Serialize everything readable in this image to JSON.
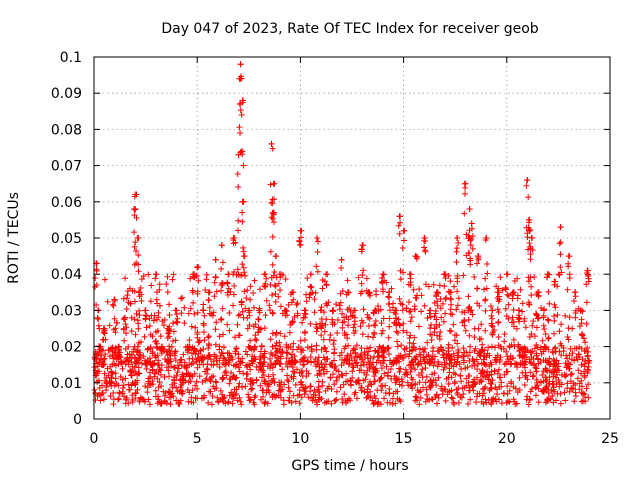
{
  "chart_data": {
    "type": "scatter",
    "title": "Day 047 of 2023, Rate Of TEC Index for receiver geob",
    "xlabel": "GPS time / hours",
    "ylabel": "ROTI / TECUs",
    "xlim": [
      0,
      25
    ],
    "ylim": [
      0,
      0.1
    ],
    "grid": true,
    "marker": "+",
    "marker_color": "#ff0000",
    "x_ticks": [
      "0",
      "5",
      "10",
      "15",
      "20",
      "25"
    ],
    "x_tick_values": [
      0,
      5,
      10,
      15,
      20,
      25
    ],
    "y_ticks": [
      "0",
      "0.01",
      "0.02",
      "0.03",
      "0.04",
      "0.05",
      "0.06",
      "0.07",
      "0.08",
      "0.09",
      "0.1"
    ],
    "y_tick_values": [
      0,
      0.01,
      0.02,
      0.03,
      0.04,
      0.05,
      0.06,
      0.07,
      0.08,
      0.09,
      0.1
    ],
    "series": [
      {
        "values_note": "",
        "x": [
          0.1,
          0.2,
          0.3,
          0.4,
          0.5,
          0.8,
          1.0,
          1.2,
          1.5,
          1.8,
          2.0,
          2.0,
          2.1,
          2.2,
          2.5,
          2.8,
          3.0,
          3.3,
          3.6,
          4.0,
          4.3,
          4.6,
          4.8,
          5.0,
          5.3,
          5.6,
          5.9,
          6.2,
          6.5,
          6.8,
          7.0,
          7.1,
          7.1,
          7.2,
          7.2,
          7.3,
          7.5,
          7.8,
          8.0,
          8.3,
          8.6,
          8.7,
          8.7,
          8.8,
          9.0,
          9.3,
          9.6,
          10.0,
          10.2,
          10.5,
          10.8,
          11.0,
          11.3,
          11.6,
          12.0,
          12.3,
          12.6,
          13.0,
          13.3,
          13.6,
          14.0,
          14.3,
          14.6,
          14.8,
          15.0,
          15.3,
          15.6,
          16.0,
          16.3,
          16.6,
          17.0,
          17.3,
          17.6,
          18.0,
          18.2,
          18.2,
          18.3,
          18.6,
          19.0,
          19.3,
          19.6,
          20.0,
          20.3,
          20.6,
          21.0,
          21.1,
          21.1,
          21.2,
          21.5,
          21.8,
          22.0,
          22.3,
          22.6,
          23.0,
          23.3,
          23.6,
          23.9
        ],
        "y": [
          0.043,
          0.03,
          0.02,
          0.015,
          0.025,
          0.01,
          0.033,
          0.02,
          0.028,
          0.012,
          0.062,
          0.058,
          0.05,
          0.035,
          0.03,
          0.015,
          0.04,
          0.02,
          0.025,
          0.03,
          0.01,
          0.02,
          0.04,
          0.042,
          0.03,
          0.035,
          0.044,
          0.048,
          0.04,
          0.05,
          0.073,
          0.098,
          0.094,
          0.088,
          0.06,
          0.045,
          0.03,
          0.02,
          0.03,
          0.04,
          0.076,
          0.065,
          0.057,
          0.045,
          0.04,
          0.03,
          0.035,
          0.052,
          0.03,
          0.04,
          0.05,
          0.03,
          0.04,
          0.03,
          0.044,
          0.035,
          0.03,
          0.048,
          0.035,
          0.03,
          0.04,
          0.035,
          0.03,
          0.056,
          0.052,
          0.04,
          0.045,
          0.05,
          0.03,
          0.035,
          0.04,
          0.035,
          0.05,
          0.065,
          0.058,
          0.05,
          0.054,
          0.045,
          0.05,
          0.03,
          0.035,
          0.04,
          0.035,
          0.03,
          0.066,
          0.055,
          0.052,
          0.05,
          0.035,
          0.03,
          0.04,
          0.038,
          0.053,
          0.045,
          0.035,
          0.03,
          0.041
        ]
      }
    ]
  }
}
